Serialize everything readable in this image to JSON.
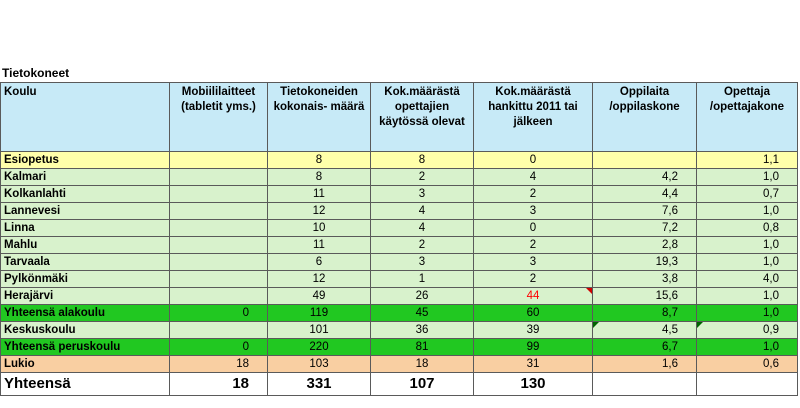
{
  "caption": "Tietokoneet",
  "headers": {
    "koulu": "Koulu",
    "mobiili": "Mobiililaitteet (tabletit yms.)",
    "tietokoneet": "Tietokoneiden kokonais- määrä",
    "opettajat": "Kok.määrästä opettajien käytössä olevat",
    "hankittu": "Kok.määrästä hankittu 2011 tai jälkeen",
    "oppilaita": "Oppilaita /oppilaskone",
    "opettaja": "Opettaja /opettajakone"
  },
  "rows": [
    {
      "name": "Esiopetus",
      "mobiili": "",
      "koneet": "8",
      "opett": "8",
      "hank": "0",
      "opp": "",
      "opettaja": "1,1"
    },
    {
      "name": "Kalmari",
      "mobiili": "",
      "koneet": "8",
      "opett": "2",
      "hank": "4",
      "opp": "4,2",
      "opettaja": "1,0"
    },
    {
      "name": "Kolkanlahti",
      "mobiili": "",
      "koneet": "11",
      "opett": "3",
      "hank": "2",
      "opp": "4,4",
      "opettaja": "0,7"
    },
    {
      "name": "Lannevesi",
      "mobiili": "",
      "koneet": "12",
      "opett": "4",
      "hank": "3",
      "opp": "7,6",
      "opettaja": "1,0"
    },
    {
      "name": "Linna",
      "mobiili": "",
      "koneet": "10",
      "opett": "4",
      "hank": "0",
      "opp": "7,2",
      "opettaja": "0,8"
    },
    {
      "name": "Mahlu",
      "mobiili": "",
      "koneet": "11",
      "opett": "2",
      "hank": "2",
      "opp": "2,8",
      "opettaja": "1,0"
    },
    {
      "name": "Tarvaala",
      "mobiili": "",
      "koneet": "6",
      "opett": "3",
      "hank": "3",
      "opp": "19,3",
      "opettaja": "1,0"
    },
    {
      "name": "Pylkönmäki",
      "mobiili": "",
      "koneet": "12",
      "opett": "1",
      "hank": "2",
      "opp": "3,8",
      "opettaja": "4,0"
    },
    {
      "name": "Herajärvi",
      "mobiili": "",
      "koneet": "49",
      "opett": "26",
      "hank": "44",
      "opp": "15,6",
      "opettaja": "1,0"
    },
    {
      "name": "Yhteensä alakoulu",
      "mobiili": "0",
      "koneet": "119",
      "opett": "45",
      "hank": "60",
      "opp": "8,7",
      "opettaja": "1,0"
    },
    {
      "name": "Keskuskoulu",
      "mobiili": "",
      "koneet": "101",
      "opett": "36",
      "hank": "39",
      "opp": "4,5",
      "opettaja": "0,9"
    },
    {
      "name": "Yhteensä peruskoulu",
      "mobiili": "0",
      "koneet": "220",
      "opett": "81",
      "hank": "99",
      "opp": "6,7",
      "opettaja": "1,0"
    },
    {
      "name": "Lukio",
      "mobiili": "18",
      "koneet": "103",
      "opett": "18",
      "hank": "31",
      "opp": "1,6",
      "opettaja": "0,6"
    }
  ],
  "total": {
    "name": "Yhteensä",
    "mobiili": "18",
    "koneet": "331",
    "opett": "107",
    "hank": "130",
    "opp": "",
    "opettaja": ""
  },
  "colors": {
    "header": "#c7eaf7",
    "yellow": "#ffffaa",
    "light_green": "#d8f2cc",
    "green": "#21c821",
    "orange": "#f9cfa2",
    "red_text": "#ff0000"
  }
}
